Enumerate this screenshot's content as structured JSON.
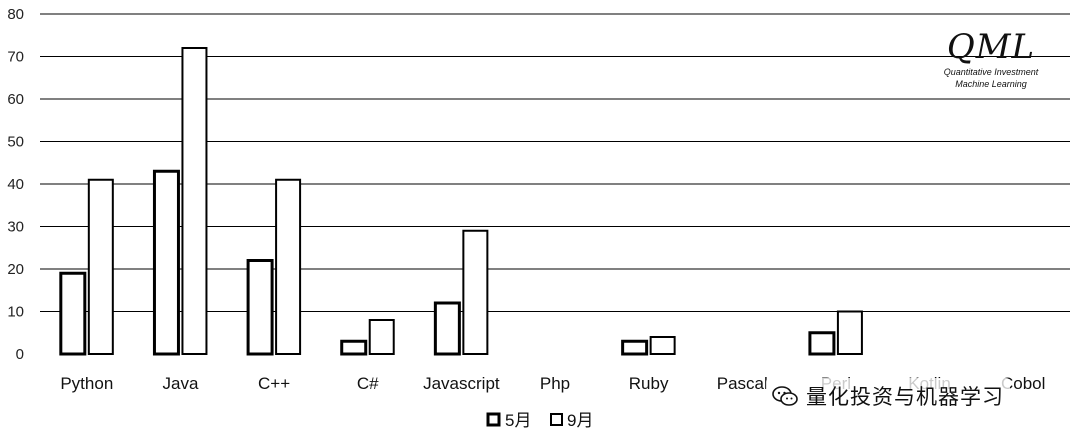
{
  "chart_data": {
    "type": "bar",
    "categories": [
      "Python",
      "Java",
      "C++",
      "C#",
      "Javascript",
      "Php",
      "Ruby",
      "Pascal",
      "Perl",
      "Kotlin",
      "Cobol"
    ],
    "series": [
      {
        "name": "5月",
        "values": [
          19,
          43,
          22,
          3,
          12,
          0,
          3,
          0,
          5,
          0,
          0
        ]
      },
      {
        "name": "9月",
        "values": [
          41,
          72,
          41,
          8,
          29,
          0,
          4,
          0,
          10,
          0,
          0
        ]
      }
    ],
    "ylim": [
      0,
      80
    ],
    "yticks": [
      0,
      10,
      20,
      30,
      40,
      50,
      60,
      70,
      80
    ],
    "grid": true,
    "legend_position": "bottom-center",
    "title": "",
    "xlabel": "",
    "ylabel": ""
  },
  "logo": {
    "mark": "QML",
    "line1": "Quantitative Investment",
    "line2": "Machine Learning"
  },
  "watermark": {
    "icon": "wechat-icon",
    "text": "量化投资与机器学习"
  },
  "colors": {
    "bar_fill": "#ffffff",
    "bar_stroke": "#000000",
    "grid": "#000000"
  }
}
